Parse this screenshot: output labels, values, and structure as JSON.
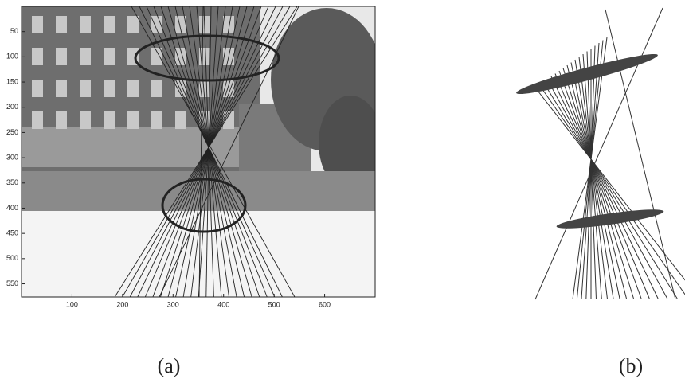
{
  "panel_a": {
    "caption": "(a)",
    "xlim": [
      0,
      700
    ],
    "ylim": [
      0,
      576
    ],
    "xticks": [
      100,
      200,
      300,
      400,
      500,
      600
    ],
    "yticks": [
      50,
      100,
      150,
      200,
      250,
      300,
      350,
      400,
      450,
      500,
      550
    ]
  },
  "panel_b": {
    "caption": "(b)"
  }
}
